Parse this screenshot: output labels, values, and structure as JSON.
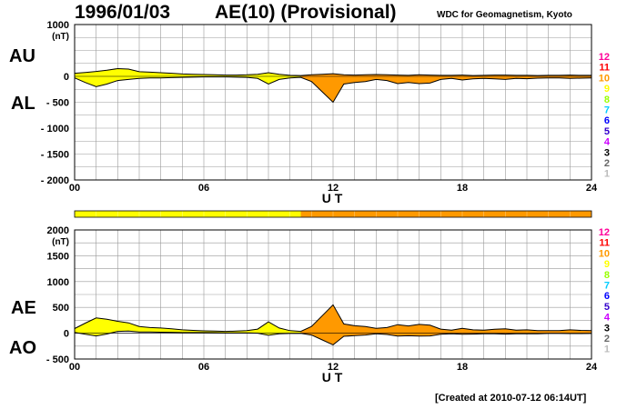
{
  "header": {
    "date": "1996/01/03",
    "title": "AE(10) (Provisional)",
    "source": "WDC for Geomagnetism, Kyoto"
  },
  "footer": {
    "created": "[Created at 2010-07-12 06:14UT]"
  },
  "colors": {
    "au_fill": "#ffff00",
    "al_fill": "#ff9900",
    "grid": "#999999"
  },
  "kp_scale": {
    "labels": [
      "12",
      "11",
      "10",
      "9",
      "8",
      "7",
      "6",
      "5",
      "4",
      "3",
      "2",
      "1"
    ],
    "colors": [
      "#ff0099",
      "#ff0000",
      "#ff9900",
      "#ffff00",
      "#99ff00",
      "#00ccff",
      "#0000ff",
      "#3300cc",
      "#cc00ff",
      "#000000",
      "#666666",
      "#bbbbbb"
    ]
  },
  "kp_bar": [
    {
      "from": 0,
      "to": 10.5,
      "level": "9"
    },
    {
      "from": 10.5,
      "to": 24,
      "level": "10"
    }
  ],
  "chart_data": [
    {
      "type": "area",
      "panel": "top",
      "left_labels": [
        "AU",
        "AL"
      ],
      "ylabel": "(nT)",
      "xlabel": "U T",
      "ylim": [
        -2000,
        1000
      ],
      "yticks": [
        1000,
        0,
        -500,
        -1000,
        -1500,
        -2000
      ],
      "ytick_labels": [
        "1000",
        "0",
        "- 500",
        "- 1000",
        "- 1500",
        "- 2000"
      ],
      "xlim": [
        0,
        24
      ],
      "xticks": [
        0,
        6,
        12,
        18,
        24
      ],
      "xtick_labels": [
        "00",
        "06",
        "12",
        "18",
        "24"
      ],
      "grid": true,
      "x": [
        0,
        0.5,
        1,
        1.5,
        2,
        2.5,
        3,
        3.5,
        4,
        4.5,
        5,
        5.5,
        6,
        6.5,
        7,
        7.5,
        8,
        8.5,
        9,
        9.5,
        10,
        10.5,
        11,
        11.5,
        12,
        12.5,
        13,
        13.5,
        14,
        14.5,
        15,
        15.5,
        16,
        16.5,
        17,
        17.5,
        18,
        18.5,
        19,
        19.5,
        20,
        20.5,
        21,
        21.5,
        22,
        22.5,
        23,
        23.5,
        24
      ],
      "series": [
        {
          "name": "AU",
          "values": [
            60,
            75,
            95,
            120,
            150,
            140,
            90,
            80,
            70,
            60,
            45,
            40,
            35,
            30,
            25,
            25,
            30,
            40,
            70,
            40,
            20,
            15,
            30,
            40,
            50,
            30,
            25,
            30,
            35,
            30,
            25,
            20,
            30,
            25,
            20,
            20,
            25,
            15,
            20,
            25,
            25,
            20,
            20,
            15,
            20,
            20,
            25,
            20,
            20
          ]
        },
        {
          "name": "AL",
          "values": [
            -30,
            -120,
            -200,
            -150,
            -80,
            -60,
            -40,
            -30,
            -30,
            -25,
            -20,
            -15,
            -10,
            -10,
            -10,
            -15,
            -20,
            -40,
            -150,
            -60,
            -30,
            -20,
            -100,
            -300,
            -500,
            -150,
            -120,
            -100,
            -60,
            -80,
            -140,
            -120,
            -140,
            -130,
            -60,
            -40,
            -70,
            -50,
            -40,
            -50,
            -60,
            -40,
            -45,
            -35,
            -30,
            -30,
            -40,
            -35,
            -30
          ]
        }
      ]
    },
    {
      "type": "area",
      "panel": "bottom",
      "left_labels": [
        "AE",
        "AO"
      ],
      "ylabel": "(nT)",
      "xlabel": "U T",
      "ylim": [
        -500,
        2000
      ],
      "yticks": [
        2000,
        1500,
        1000,
        500,
        0,
        -500
      ],
      "ytick_labels": [
        "2000",
        "1500",
        "1000",
        "500",
        "0",
        "- 500"
      ],
      "xlim": [
        0,
        24
      ],
      "xticks": [
        0,
        6,
        12,
        18,
        24
      ],
      "xtick_labels": [
        "00",
        "06",
        "12",
        "18",
        "24"
      ],
      "grid": true,
      "x": [
        0,
        0.5,
        1,
        1.5,
        2,
        2.5,
        3,
        3.5,
        4,
        4.5,
        5,
        5.5,
        6,
        6.5,
        7,
        7.5,
        8,
        8.5,
        9,
        9.5,
        10,
        10.5,
        11,
        11.5,
        12,
        12.5,
        13,
        13.5,
        14,
        14.5,
        15,
        15.5,
        16,
        16.5,
        17,
        17.5,
        18,
        18.5,
        19,
        19.5,
        20,
        20.5,
        21,
        21.5,
        22,
        22.5,
        23,
        23.5,
        24
      ],
      "series": [
        {
          "name": "AE",
          "values": [
            90,
            195,
            295,
            270,
            230,
            200,
            130,
            110,
            100,
            85,
            65,
            55,
            45,
            40,
            35,
            40,
            50,
            80,
            220,
            100,
            50,
            35,
            130,
            340,
            550,
            180,
            145,
            130,
            95,
            110,
            165,
            140,
            170,
            155,
            80,
            60,
            95,
            65,
            60,
            75,
            85,
            60,
            65,
            50,
            50,
            50,
            65,
            55,
            50
          ]
        },
        {
          "name": "AO",
          "values": [
            15,
            -22,
            -52,
            -15,
            35,
            40,
            25,
            25,
            20,
            17,
            12,
            12,
            12,
            10,
            7,
            5,
            5,
            0,
            -40,
            -10,
            -5,
            -2,
            -35,
            -130,
            -225,
            -60,
            -47,
            -35,
            -12,
            -25,
            -57,
            -50,
            -55,
            -52,
            -20,
            -10,
            -22,
            -17,
            -10,
            -12,
            -17,
            -10,
            -12,
            -10,
            -5,
            -5,
            -7,
            -7,
            -5
          ]
        }
      ]
    }
  ]
}
